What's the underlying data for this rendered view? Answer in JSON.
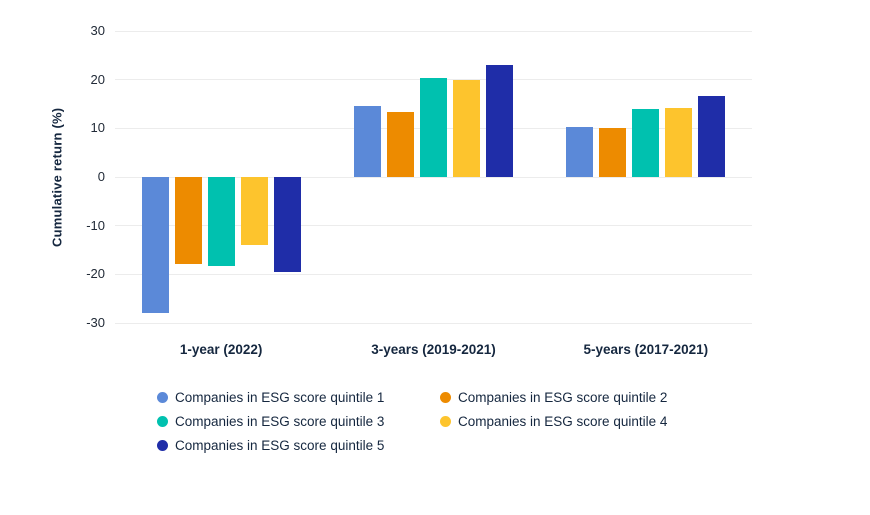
{
  "chart_data": {
    "type": "bar",
    "title": "",
    "xlabel": "",
    "ylabel": "Cumulative return (%)",
    "ylim": [
      -30,
      30
    ],
    "yticks": [
      30,
      20,
      10,
      0,
      -10,
      -20,
      -30
    ],
    "grid": true,
    "legend_position": "bottom",
    "categories": [
      "1-year (2022)",
      "3-years (2019-2021)",
      "5-years (2017-2021)"
    ],
    "series": [
      {
        "name": "Companies in ESG score quintile 1",
        "color": "#5B89D8",
        "values": [
          -27.9,
          14.6,
          10.2
        ]
      },
      {
        "name": "Companies in ESG score quintile 2",
        "color": "#ED8B00",
        "values": [
          -17.8,
          13.4,
          10.0
        ]
      },
      {
        "name": "Companies in ESG score quintile 3",
        "color": "#00C1AF",
        "values": [
          -18.2,
          20.4,
          13.9
        ]
      },
      {
        "name": "Companies in ESG score quintile 4",
        "color": "#FDC42D",
        "values": [
          -13.9,
          19.9,
          14.2
        ]
      },
      {
        "name": "Companies in ESG score quintile 5",
        "color": "#1F2DA8",
        "values": [
          -19.6,
          23.1,
          16.7
        ]
      }
    ],
    "colors": {
      "gridline": "#ECECEC",
      "axis_text": "#222B38",
      "label_text": "#15273F",
      "background": "#FFFFFF"
    }
  }
}
